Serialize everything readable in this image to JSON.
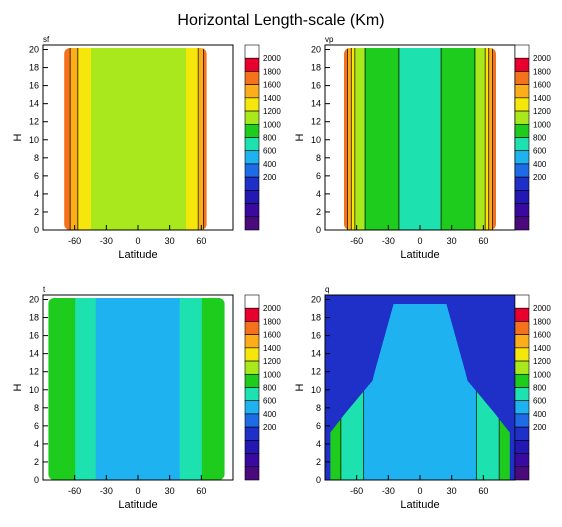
{
  "title": "Horizontal Length-scale (Km)",
  "colorbar": {
    "labels": [
      "2000",
      "1800",
      "1600",
      "1400",
      "1200",
      "1000",
      "800",
      "600",
      "400",
      "200"
    ],
    "colors": [
      "#ffffff",
      "#e8002e",
      "#f5721c",
      "#fbae19",
      "#f5e60c",
      "#a8e81c",
      "#1ecc1e",
      "#1ee1b0",
      "#1eb3f0",
      "#1e6be6",
      "#1e30c8",
      "#2418b4",
      "#3a0aa0",
      "#4a0a7c"
    ]
  },
  "chart_data": [
    {
      "type": "contour",
      "panel_label": "sf",
      "xlabel": "Latitude",
      "ylabel": "H",
      "xticks": [
        "-60",
        "-30",
        "0",
        "30",
        "60"
      ],
      "yticks": [
        "0",
        "2",
        "4",
        "6",
        "8",
        "10",
        "12",
        "14",
        "16",
        "18",
        "20"
      ],
      "xlim": [
        -90,
        90
      ],
      "ylim": [
        0,
        20.5
      ],
      "levels": [
        200,
        400,
        600,
        800,
        1000,
        1200,
        1400,
        1600,
        1800,
        2000
      ],
      "edge_lat": [
        -70,
        65
      ],
      "interior_value": 1250,
      "edge_value": 1800,
      "outside_value": null,
      "profile": [
        {
          "lat": -70,
          "value": 1800
        },
        {
          "lat": -60,
          "value": 1450
        },
        {
          "lat": -45,
          "value": 1200
        },
        {
          "lat": 0,
          "value": 1150
        },
        {
          "lat": 45,
          "value": 1200
        },
        {
          "lat": 60,
          "value": 1450
        },
        {
          "lat": 65,
          "value": 1800
        }
      ]
    },
    {
      "type": "contour",
      "panel_label": "vp",
      "xlabel": "Latitude",
      "ylabel": "H",
      "xticks": [
        "-60",
        "-30",
        "0",
        "30",
        "60"
      ],
      "yticks": [
        "0",
        "2",
        "4",
        "6",
        "8",
        "10",
        "12",
        "14",
        "16",
        "18",
        "20"
      ],
      "xlim": [
        -90,
        90
      ],
      "ylim": [
        0,
        20.5
      ],
      "levels": [
        200,
        400,
        600,
        800,
        1000,
        1200,
        1400,
        1600,
        1800,
        2000
      ],
      "edge_lat": [
        -72,
        72
      ],
      "interior_value": 800,
      "edge_value": 1800,
      "outside_value": null,
      "profile": [
        {
          "lat": -72,
          "value": 1800
        },
        {
          "lat": -60,
          "value": 1100
        },
        {
          "lat": -40,
          "value": 850
        },
        {
          "lat": 0,
          "value": 750
        },
        {
          "lat": 40,
          "value": 850
        },
        {
          "lat": 60,
          "value": 1100
        },
        {
          "lat": 72,
          "value": 1800
        }
      ]
    },
    {
      "type": "contour",
      "panel_label": "t",
      "xlabel": "Latitude",
      "ylabel": "H",
      "xticks": [
        "-60",
        "-30",
        "0",
        "30",
        "60"
      ],
      "yticks": [
        "0",
        "2",
        "4",
        "6",
        "8",
        "10",
        "12",
        "14",
        "16",
        "18",
        "20"
      ],
      "xlim": [
        -90,
        90
      ],
      "ylim": [
        0,
        20.5
      ],
      "levels": [
        200,
        400,
        600,
        800,
        1000,
        1200,
        1400,
        1600,
        1800,
        2000
      ],
      "edge_lat": [
        -85,
        82
      ],
      "interior_value": 450,
      "edge_value": 900,
      "outside_value": null,
      "profile": [
        {
          "lat": -85,
          "value": 900
        },
        {
          "lat": -60,
          "value": 800
        },
        {
          "lat": -40,
          "value": 600
        },
        {
          "lat": 0,
          "value": 450
        },
        {
          "lat": 40,
          "value": 600
        },
        {
          "lat": 60,
          "value": 800
        },
        {
          "lat": 82,
          "value": 900
        }
      ]
    },
    {
      "type": "contour",
      "panel_label": "q",
      "xlabel": "Latitude",
      "ylabel": "H",
      "xticks": [
        "-60",
        "-30",
        "0",
        "30",
        "60"
      ],
      "yticks": [
        "0",
        "2",
        "4",
        "6",
        "8",
        "10",
        "12",
        "14",
        "16",
        "18",
        "20"
      ],
      "xlim": [
        -90,
        90
      ],
      "ylim": [
        0,
        20.5
      ],
      "levels": [
        200,
        400,
        600,
        800,
        1000,
        1200,
        1400,
        1600,
        1800,
        2000
      ],
      "edge_lat": [
        -85,
        85
      ],
      "interior_value": 450,
      "edge_value": 900,
      "outside_value": 100,
      "profile": [
        {
          "lat": -85,
          "value": 900
        },
        {
          "lat": -60,
          "value": 650
        },
        {
          "lat": -40,
          "value": 500
        },
        {
          "lat": 0,
          "value": 450
        },
        {
          "lat": 40,
          "value": 500
        },
        {
          "lat": 60,
          "value": 650
        },
        {
          "lat": 85,
          "value": 900
        }
      ]
    }
  ]
}
